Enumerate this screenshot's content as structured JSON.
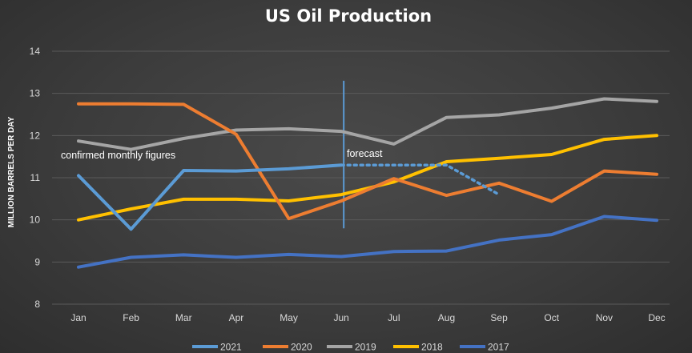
{
  "chart_data": {
    "type": "line",
    "title": "US Oil Production",
    "ylabel": "MILLION BARRELS PER DAY",
    "xlabel": "",
    "ylim": [
      8,
      14
    ],
    "yticks": [
      8,
      9,
      10,
      11,
      12,
      13,
      14
    ],
    "grid": true,
    "legend_position": "bottom",
    "categories": [
      "Jan",
      "Feb",
      "Mar",
      "Apr",
      "May",
      "Jun",
      "Jul",
      "Aug",
      "Sep",
      "Oct",
      "Nov",
      "Dec"
    ],
    "series": [
      {
        "name": "2021",
        "color": "#5b9bd5",
        "values": [
          11.05,
          9.78,
          11.17,
          11.16,
          11.21,
          11.3,
          null,
          null,
          null,
          null,
          null,
          null
        ]
      },
      {
        "name": "2020",
        "color": "#ed7d31",
        "values": [
          12.75,
          12.75,
          12.74,
          12.03,
          10.03,
          10.45,
          10.98,
          10.58,
          10.87,
          10.44,
          11.16,
          11.08
        ]
      },
      {
        "name": "2019",
        "color": "#a5a5a5",
        "values": [
          11.87,
          11.67,
          11.93,
          12.13,
          12.16,
          12.1,
          11.8,
          12.43,
          12.49,
          12.65,
          12.87,
          12.81
        ]
      },
      {
        "name": "2018",
        "color": "#ffc000",
        "values": [
          10.0,
          10.26,
          10.49,
          10.49,
          10.45,
          10.6,
          10.9,
          11.38,
          11.46,
          11.55,
          11.91,
          12.0
        ]
      },
      {
        "name": "2017",
        "color": "#4472c4",
        "values": [
          8.88,
          9.11,
          9.17,
          9.11,
          9.18,
          9.13,
          9.25,
          9.26,
          9.52,
          9.65,
          10.08,
          9.99
        ]
      }
    ],
    "forecast": {
      "series": "2021",
      "color": "#5b9bd5",
      "from_month": "Jun",
      "values": [
        11.3,
        11.3,
        11.3,
        10.6
      ],
      "months": [
        "Jun",
        "Jul",
        "Aug",
        "Sep"
      ]
    },
    "annotations": [
      {
        "text": "confirmed monthly figures"
      },
      {
        "text": "forecast"
      }
    ],
    "divider_at": "Jun"
  }
}
